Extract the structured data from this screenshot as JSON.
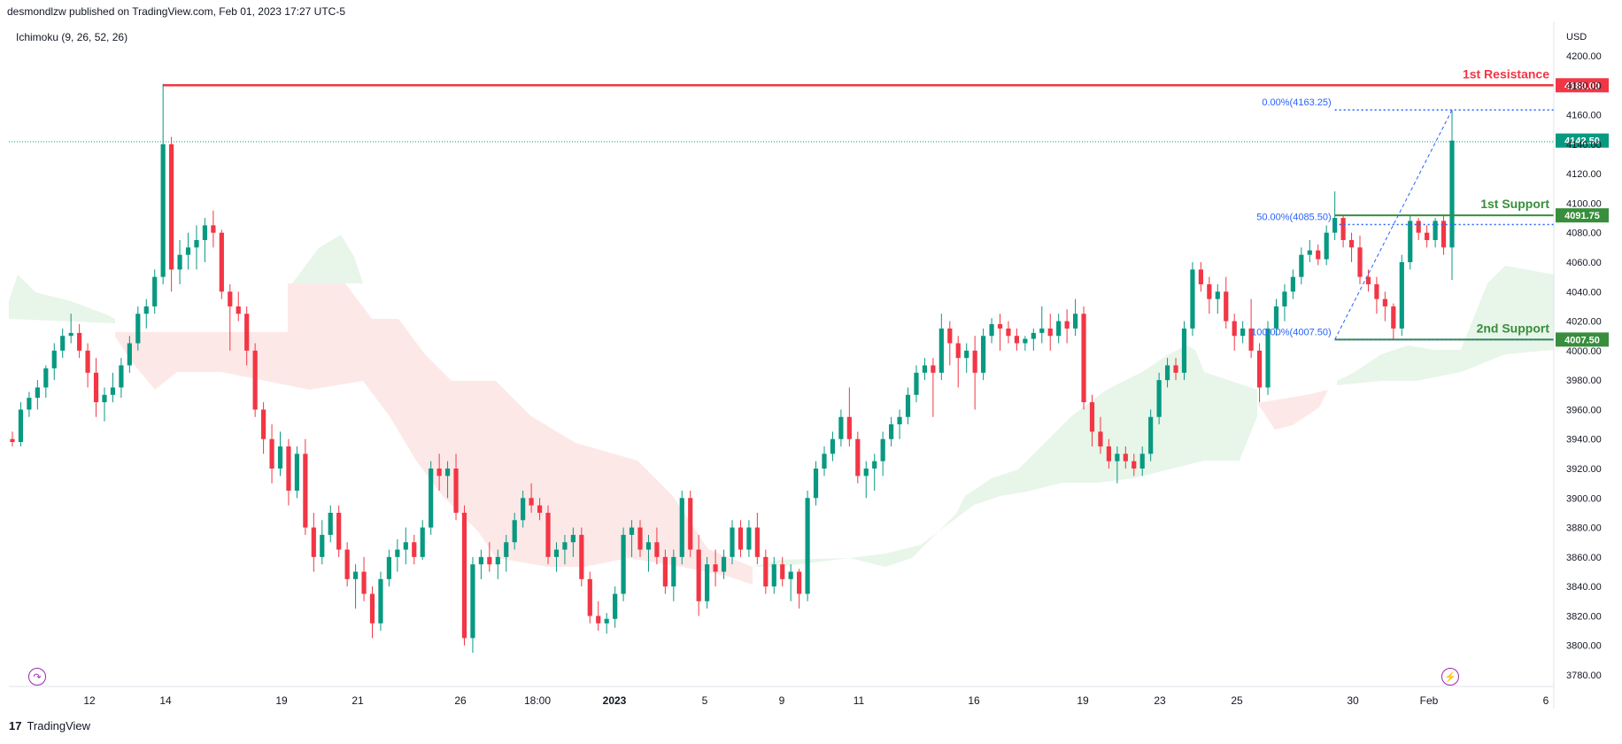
{
  "header": {
    "published_by": "desmondlzw published on TradingView.com, Feb 01, 2023 17:27 UTC-5"
  },
  "indicator": {
    "label": "Ichimoku (9, 26, 52, 26)"
  },
  "footer": {
    "brand": "TradingView",
    "logo_icon": "tradingview-logo-icon"
  },
  "colors": {
    "up": "#089981",
    "down": "#f23645",
    "resistance": "#f23645",
    "support": "#388e3c",
    "fib": "#2962ff",
    "cloud_bull": "#e8f5e9",
    "cloud_bear": "#fde8e8"
  },
  "chart_data": {
    "type": "candlestick",
    "currency": "USD",
    "y_axis": {
      "ylim": [
        3780,
        4200
      ],
      "ticks": [
        "4200.00",
        "4180.00",
        "4160.00",
        "4140.00",
        "4120.00",
        "4100.00",
        "4080.00",
        "4060.00",
        "4040.00",
        "4020.00",
        "4000.00",
        "3980.00",
        "3960.00",
        "3940.00",
        "3920.00",
        "3900.00",
        "3880.00",
        "3860.00",
        "3840.00",
        "3820.00",
        "3800.00",
        "3780.00"
      ]
    },
    "x_axis": {
      "ticks": [
        "12",
        "14",
        "19",
        "21",
        "26",
        "18:00",
        "2023",
        "5",
        "9",
        "11",
        "16",
        "19",
        "23",
        "25",
        "30",
        "Feb",
        "6"
      ],
      "bold_ticks": [
        "2023"
      ]
    },
    "last_price": "4142.50",
    "levels": [
      {
        "name": "1st Resistance",
        "value": 4180.0,
        "badge": "4180.00",
        "color": "#f23645"
      },
      {
        "name": "1st Support",
        "value": 4091.75,
        "badge": "4091.75",
        "color": "#388e3c"
      },
      {
        "name": "2nd Support",
        "value": 4007.5,
        "badge": "4007.50",
        "color": "#388e3c"
      }
    ],
    "fibonacci": [
      {
        "label": "0.00%(4163.25)",
        "value": 4163.25
      },
      {
        "label": "50.00%(4085.50)",
        "value": 4085.5
      },
      {
        "label": "100.00%(4007.50)",
        "value": 4007.5
      }
    ],
    "candles": [
      [
        3940,
        3945,
        3935,
        3938
      ],
      [
        3938,
        3965,
        3935,
        3960
      ],
      [
        3960,
        3972,
        3955,
        3968
      ],
      [
        3968,
        3980,
        3960,
        3975
      ],
      [
        3975,
        3990,
        3968,
        3988
      ],
      [
        3988,
        4005,
        3980,
        4000
      ],
      [
        4000,
        4015,
        3995,
        4010
      ],
      [
        4010,
        4025,
        4005,
        4012
      ],
      [
        4012,
        4018,
        3995,
        4000
      ],
      [
        4000,
        4005,
        3975,
        3985
      ],
      [
        3985,
        3995,
        3955,
        3965
      ],
      [
        3965,
        3975,
        3952,
        3970
      ],
      [
        3970,
        3985,
        3965,
        3975
      ],
      [
        3975,
        3995,
        3968,
        3990
      ],
      [
        3990,
        4010,
        3985,
        4005
      ],
      [
        4005,
        4030,
        4000,
        4025
      ],
      [
        4025,
        4035,
        4015,
        4030
      ],
      [
        4030,
        4055,
        4025,
        4050
      ],
      [
        4050,
        4181,
        4045,
        4140
      ],
      [
        4140,
        4145,
        4040,
        4055
      ],
      [
        4055,
        4075,
        4045,
        4065
      ],
      [
        4065,
        4080,
        4055,
        4070
      ],
      [
        4070,
        4085,
        4055,
        4075
      ],
      [
        4075,
        4090,
        4060,
        4085
      ],
      [
        4085,
        4095,
        4070,
        4080
      ],
      [
        4080,
        4082,
        4035,
        4040
      ],
      [
        4040,
        4045,
        4000,
        4030
      ],
      [
        4030,
        4040,
        4020,
        4025
      ],
      [
        4025,
        4030,
        3990,
        4000
      ],
      [
        4000,
        4005,
        3955,
        3960
      ],
      [
        3960,
        3965,
        3930,
        3940
      ],
      [
        3940,
        3950,
        3910,
        3920
      ],
      [
        3920,
        3945,
        3915,
        3935
      ],
      [
        3935,
        3940,
        3895,
        3905
      ],
      [
        3905,
        3935,
        3900,
        3930
      ],
      [
        3930,
        3940,
        3875,
        3880
      ],
      [
        3880,
        3890,
        3850,
        3860
      ],
      [
        3860,
        3885,
        3855,
        3875
      ],
      [
        3875,
        3895,
        3870,
        3890
      ],
      [
        3890,
        3895,
        3860,
        3865
      ],
      [
        3865,
        3870,
        3840,
        3845
      ],
      [
        3845,
        3855,
        3825,
        3850
      ],
      [
        3850,
        3860,
        3830,
        3835
      ],
      [
        3835,
        3840,
        3805,
        3815
      ],
      [
        3815,
        3850,
        3810,
        3845
      ],
      [
        3845,
        3865,
        3840,
        3860
      ],
      [
        3860,
        3872,
        3850,
        3865
      ],
      [
        3865,
        3880,
        3855,
        3870
      ],
      [
        3870,
        3875,
        3855,
        3860
      ],
      [
        3860,
        3885,
        3858,
        3880
      ],
      [
        3880,
        3925,
        3875,
        3920
      ],
      [
        3920,
        3930,
        3905,
        3915
      ],
      [
        3915,
        3925,
        3900,
        3920
      ],
      [
        3920,
        3930,
        3885,
        3890
      ],
      [
        3890,
        3895,
        3800,
        3805
      ],
      [
        3805,
        3860,
        3795,
        3855
      ],
      [
        3855,
        3865,
        3845,
        3860
      ],
      [
        3860,
        3870,
        3850,
        3855
      ],
      [
        3855,
        3865,
        3845,
        3860
      ],
      [
        3860,
        3875,
        3850,
        3870
      ],
      [
        3870,
        3890,
        3865,
        3885
      ],
      [
        3885,
        3905,
        3880,
        3900
      ],
      [
        3900,
        3910,
        3890,
        3895
      ],
      [
        3895,
        3900,
        3885,
        3890
      ],
      [
        3890,
        3895,
        3855,
        3860
      ],
      [
        3860,
        3870,
        3850,
        3865
      ],
      [
        3865,
        3875,
        3855,
        3870
      ],
      [
        3870,
        3880,
        3860,
        3875
      ],
      [
        3875,
        3880,
        3840,
        3845
      ],
      [
        3845,
        3850,
        3815,
        3820
      ],
      [
        3820,
        3830,
        3810,
        3815
      ],
      [
        3815,
        3822,
        3808,
        3818
      ],
      [
        3818,
        3840,
        3812,
        3835
      ],
      [
        3835,
        3880,
        3830,
        3875
      ],
      [
        3875,
        3885,
        3860,
        3880
      ],
      [
        3880,
        3885,
        3860,
        3865
      ],
      [
        3865,
        3875,
        3850,
        3870
      ],
      [
        3870,
        3880,
        3855,
        3860
      ],
      [
        3860,
        3865,
        3835,
        3840
      ],
      [
        3840,
        3865,
        3830,
        3860
      ],
      [
        3860,
        3905,
        3855,
        3900
      ],
      [
        3900,
        3905,
        3860,
        3865
      ],
      [
        3865,
        3875,
        3820,
        3830
      ],
      [
        3830,
        3860,
        3825,
        3855
      ],
      [
        3855,
        3865,
        3840,
        3850
      ],
      [
        3850,
        3865,
        3845,
        3860
      ],
      [
        3860,
        3885,
        3855,
        3880
      ],
      [
        3880,
        3885,
        3860,
        3865
      ],
      [
        3865,
        3885,
        3860,
        3880
      ],
      [
        3880,
        3890,
        3855,
        3860
      ],
      [
        3860,
        3865,
        3835,
        3840
      ],
      [
        3840,
        3860,
        3835,
        3855
      ],
      [
        3855,
        3860,
        3840,
        3845
      ],
      [
        3845,
        3855,
        3830,
        3850
      ],
      [
        3850,
        3852,
        3825,
        3835
      ],
      [
        3835,
        3905,
        3830,
        3900
      ],
      [
        3900,
        3925,
        3895,
        3920
      ],
      [
        3920,
        3935,
        3915,
        3930
      ],
      [
        3930,
        3945,
        3925,
        3940
      ],
      [
        3940,
        3960,
        3935,
        3955
      ],
      [
        3955,
        3975,
        3935,
        3940
      ],
      [
        3940,
        3945,
        3910,
        3915
      ],
      [
        3915,
        3925,
        3900,
        3920
      ],
      [
        3920,
        3930,
        3905,
        3925
      ],
      [
        3925,
        3945,
        3915,
        3940
      ],
      [
        3940,
        3955,
        3935,
        3950
      ],
      [
        3950,
        3960,
        3940,
        3955
      ],
      [
        3955,
        3975,
        3950,
        3970
      ],
      [
        3970,
        3990,
        3965,
        3985
      ],
      [
        3985,
        3995,
        3980,
        3990
      ],
      [
        3990,
        3995,
        3955,
        3985
      ],
      [
        3985,
        4025,
        3980,
        4015
      ],
      [
        4015,
        4020,
        3990,
        4005
      ],
      [
        4005,
        4010,
        3975,
        3995
      ],
      [
        3995,
        4005,
        3985,
        4000
      ],
      [
        4000,
        4010,
        3960,
        3985
      ],
      [
        3985,
        4015,
        3980,
        4010
      ],
      [
        4010,
        4022,
        4005,
        4018
      ],
      [
        4018,
        4025,
        4000,
        4015
      ],
      [
        4015,
        4020,
        4005,
        4010
      ],
      [
        4010,
        4015,
        4000,
        4005
      ],
      [
        4005,
        4010,
        4000,
        4008
      ],
      [
        4008,
        4015,
        4000,
        4012
      ],
      [
        4012,
        4030,
        4005,
        4015
      ],
      [
        4015,
        4025,
        4000,
        4010
      ],
      [
        4010,
        4025,
        4005,
        4020
      ],
      [
        4020,
        4028,
        4005,
        4015
      ],
      [
        4015,
        4035,
        4010,
        4025
      ],
      [
        4025,
        4030,
        3960,
        3965
      ],
      [
        3965,
        3970,
        3935,
        3945
      ],
      [
        3945,
        3955,
        3930,
        3935
      ],
      [
        3935,
        3940,
        3920,
        3925
      ],
      [
        3925,
        3935,
        3910,
        3930
      ],
      [
        3930,
        3935,
        3920,
        3925
      ],
      [
        3925,
        3930,
        3915,
        3920
      ],
      [
        3920,
        3935,
        3915,
        3930
      ],
      [
        3930,
        3960,
        3925,
        3955
      ],
      [
        3955,
        3985,
        3950,
        3980
      ],
      [
        3980,
        3995,
        3975,
        3990
      ],
      [
        3990,
        3995,
        3980,
        3985
      ],
      [
        3985,
        4020,
        3980,
        4015
      ],
      [
        4015,
        4060,
        4010,
        4055
      ],
      [
        4055,
        4060,
        4040,
        4045
      ],
      [
        4045,
        4050,
        4025,
        4035
      ],
      [
        4035,
        4045,
        4025,
        4040
      ],
      [
        4040,
        4050,
        4015,
        4020
      ],
      [
        4020,
        4025,
        4000,
        4010
      ],
      [
        4010,
        4020,
        4005,
        4015
      ],
      [
        4015,
        4035,
        3995,
        4000
      ],
      [
        4000,
        4005,
        3965,
        3975
      ],
      [
        3975,
        4020,
        3970,
        4015
      ],
      [
        4015,
        4035,
        4010,
        4030
      ],
      [
        4030,
        4045,
        4020,
        4040
      ],
      [
        4040,
        4055,
        4035,
        4050
      ],
      [
        4050,
        4070,
        4045,
        4065
      ],
      [
        4065,
        4075,
        4060,
        4068
      ],
      [
        4068,
        4072,
        4058,
        4062
      ],
      [
        4062,
        4085,
        4058,
        4080
      ],
      [
        4080,
        4108,
        4075,
        4090
      ],
      [
        4090,
        4092,
        4070,
        4075
      ],
      [
        4075,
        4080,
        4060,
        4070
      ],
      [
        4070,
        4078,
        4045,
        4050
      ],
      [
        4050,
        4055,
        4040,
        4045
      ],
      [
        4045,
        4050,
        4025,
        4035
      ],
      [
        4035,
        4040,
        4020,
        4030
      ],
      [
        4030,
        4032,
        4008,
        4015
      ],
      [
        4015,
        4065,
        4010,
        4060
      ],
      [
        4060,
        4092,
        4055,
        4088
      ],
      [
        4088,
        4090,
        4075,
        4080
      ],
      [
        4080,
        4085,
        4070,
        4075
      ],
      [
        4075,
        4090,
        4070,
        4088
      ],
      [
        4088,
        4092,
        4065,
        4070
      ],
      [
        4070,
        4163,
        4048,
        4142.5
      ]
    ]
  }
}
